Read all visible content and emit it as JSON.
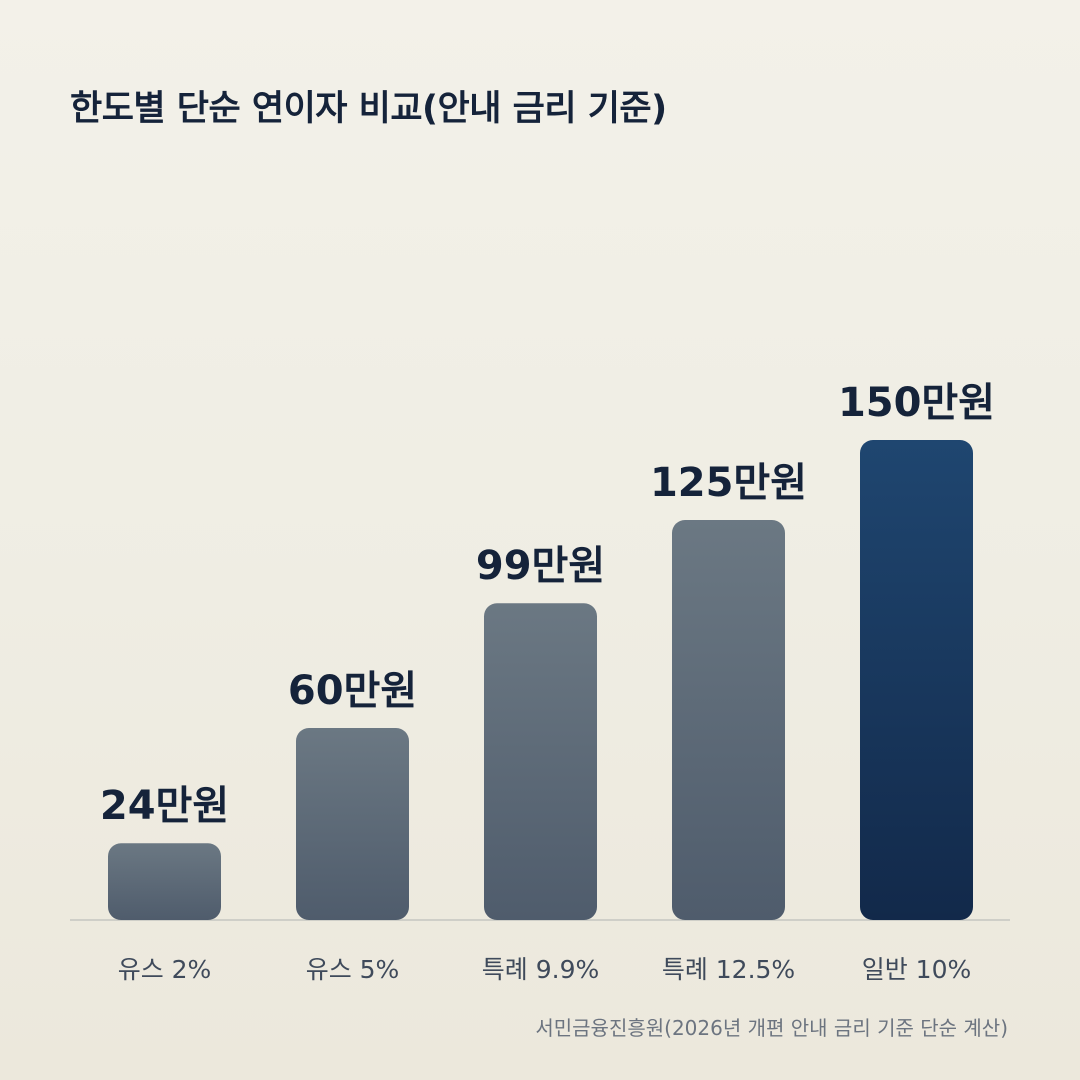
{
  "chart_data": {
    "type": "bar",
    "title": "한도별 단순 연이자 비교(안내 금리 기준)",
    "categories": [
      "유스 2%",
      "유스 5%",
      "특례 9.9%",
      "특례 12.5%",
      "일반 10%"
    ],
    "values": [
      24,
      60,
      99,
      125,
      150
    ],
    "value_labels": [
      "24만원",
      "60만원",
      "99만원",
      "125만원",
      "150만원"
    ],
    "unit": "만원",
    "highlight_index": 4,
    "ylim": [
      0,
      150
    ],
    "grid": false,
    "legend": "none",
    "xlabel": "",
    "ylabel": "",
    "colors": {
      "bar_top": "#6b7883",
      "bar_bottom": "#4f5c6c",
      "highlight_top": "#1f4670",
      "highlight_bottom": "#12294a",
      "baseline": "#cfcfc8",
      "text": "#15233a",
      "category_text": "#3f4a5b"
    },
    "source": "서민금융진흥원(2026년 개편 안내 금리 기준 단순 계산)"
  }
}
